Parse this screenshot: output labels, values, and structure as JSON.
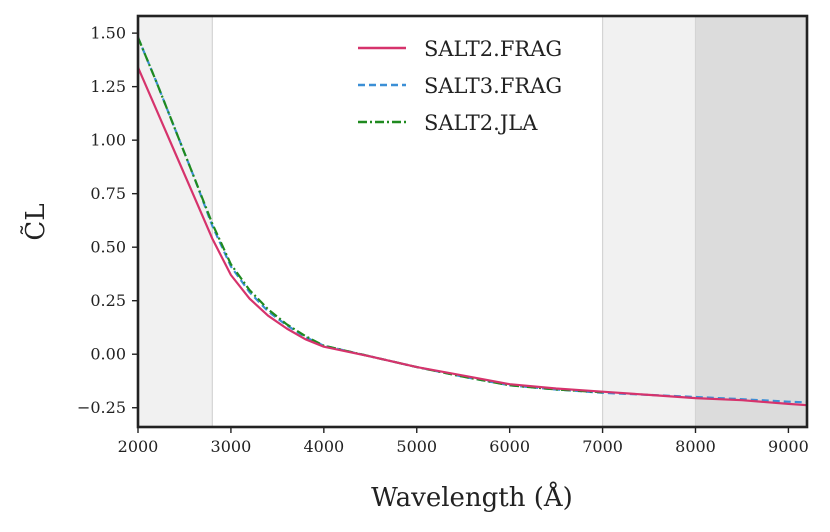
{
  "chart_data": {
    "type": "line",
    "xlabel": "Wavelength (Å)",
    "ylabel": "C̃L",
    "xlim": [
      2000,
      9200
    ],
    "ylim": [
      -0.34,
      1.58
    ],
    "xticks": [
      2000,
      3000,
      4000,
      5000,
      6000,
      7000,
      8000,
      9000
    ],
    "xtick_labels": [
      "2000",
      "3000",
      "4000",
      "5000",
      "6000",
      "7000",
      "8000",
      "9000"
    ],
    "yticks": [
      -0.25,
      0,
      0.25,
      0.5,
      0.75,
      1.0,
      1.25,
      1.5
    ],
    "ytick_labels": [
      "−0.25",
      "0.00",
      "0.25",
      "0.50",
      "0.75",
      "1.00",
      "1.25",
      "1.50"
    ],
    "legend_position": "top-center",
    "shaded_regions": [
      {
        "x0": 2000,
        "x1": 2800,
        "color": "#f1f1f1"
      },
      {
        "x0": 7000,
        "x1": 8000,
        "color": "#f1f1f1"
      },
      {
        "x0": 8000,
        "x1": 9200,
        "color": "#dcdcdc"
      }
    ],
    "series": [
      {
        "name": "SALT2.FRAG",
        "color": "#d6336c",
        "dash": "solid",
        "x": [
          2000,
          2200,
          2400,
          2600,
          2800,
          3000,
          3200,
          3400,
          3600,
          3800,
          4000,
          4500,
          5000,
          5500,
          6000,
          6500,
          7000,
          7500,
          8000,
          8500,
          9000,
          9200
        ],
        "y": [
          1.34,
          1.14,
          0.94,
          0.74,
          0.54,
          0.37,
          0.26,
          0.18,
          0.12,
          0.07,
          0.035,
          -0.01,
          -0.06,
          -0.1,
          -0.14,
          -0.16,
          -0.175,
          -0.19,
          -0.205,
          -0.215,
          -0.232,
          -0.238
        ]
      },
      {
        "name": "SALT3.FRAG",
        "color": "#3b8fd6",
        "dash": "dashed",
        "x": [
          2000,
          2200,
          2400,
          2600,
          2800,
          3000,
          3200,
          3400,
          3600,
          3800,
          4000,
          4500,
          5000,
          5500,
          6000,
          6500,
          7000,
          7500,
          8000,
          8500,
          9000,
          9200
        ],
        "y": [
          1.48,
          1.27,
          1.05,
          0.83,
          0.6,
          0.41,
          0.29,
          0.2,
          0.135,
          0.08,
          0.04,
          -0.01,
          -0.06,
          -0.105,
          -0.145,
          -0.165,
          -0.18,
          -0.19,
          -0.2,
          -0.21,
          -0.222,
          -0.225
        ]
      },
      {
        "name": "SALT2.JLA",
        "color": "#1f8a1f",
        "dash": "dashdot",
        "x": [
          2000,
          2200,
          2400,
          2600,
          2800,
          3000,
          3200,
          3400,
          3600,
          3800,
          4000,
          4500,
          5000,
          5500,
          6000,
          6500,
          7000
        ],
        "y": [
          1.48,
          1.27,
          1.05,
          0.83,
          0.61,
          0.42,
          0.3,
          0.21,
          0.14,
          0.085,
          0.04,
          -0.01,
          -0.06,
          -0.105,
          -0.145,
          -0.165,
          -0.178
        ]
      }
    ]
  }
}
